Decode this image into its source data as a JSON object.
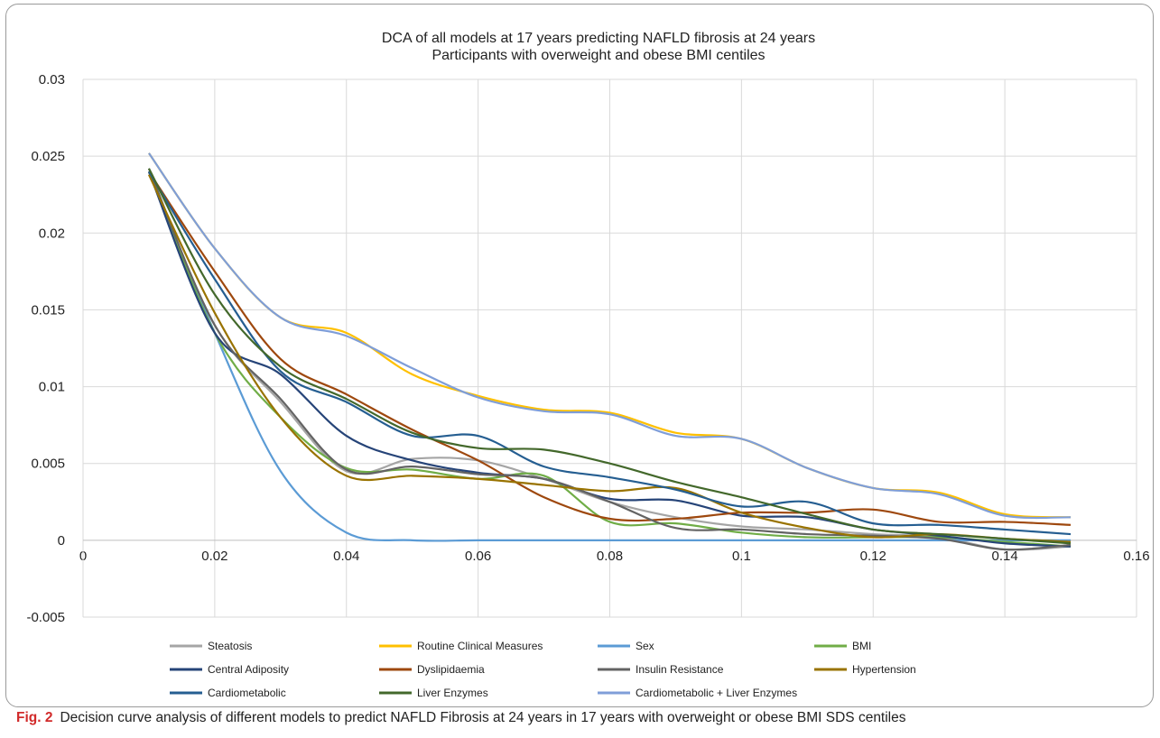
{
  "caption": {
    "label": "Fig. 2",
    "text": "Decision curve analysis of different models to predict NAFLD Fibrosis at 24 years in 17 years with overweight or obese BMI SDS centiles"
  },
  "chart_data": {
    "type": "line",
    "title": "DCA of all models at 17 years predicting NAFLD fibrosis at 24 years",
    "subtitle": "Participants with overweight and obese BMI centiles",
    "xlabel": "",
    "ylabel": "",
    "xlim": [
      0,
      0.16
    ],
    "ylim": [
      -0.005,
      0.03
    ],
    "x_ticks": [
      "0",
      "0.02",
      "0.04",
      "0.06",
      "0.08",
      "0.1",
      "0.12",
      "0.14",
      "0.16"
    ],
    "y_ticks": [
      "0.03",
      "0.025",
      "0.02",
      "0.015",
      "0.01",
      "0.005",
      "0",
      "-0.005"
    ],
    "grid": true,
    "legend_position": "bottom",
    "x": [
      0.01,
      0.02,
      0.03,
      0.04,
      0.05,
      0.06,
      0.07,
      0.08,
      0.09,
      0.1,
      0.11,
      0.12,
      0.13,
      0.14,
      0.15
    ],
    "series": [
      {
        "name": "Steatosis",
        "color": "#a5a5a5",
        "values": [
          0.024,
          0.014,
          0.009,
          0.0045,
          0.0053,
          0.0052,
          0.004,
          0.0025,
          0.0015,
          0.0009,
          0.0007,
          0.0004,
          0.0002,
          -0.0006,
          -0.0004
        ]
      },
      {
        "name": "Routine Clinical Measures",
        "color": "#ffc000",
        "values": [
          0.0252,
          0.019,
          0.0145,
          0.0135,
          0.0108,
          0.0094,
          0.0085,
          0.0083,
          0.007,
          0.0066,
          0.0047,
          0.0034,
          0.0031,
          0.0017,
          0.0015
        ]
      },
      {
        "name": "Sex",
        "color": "#5b9bd5",
        "values": [
          0.024,
          0.0135,
          0.0045,
          0.0005,
          0.0,
          0.0,
          0.0,
          0.0,
          0.0,
          0.0,
          0.0,
          0.0,
          0.0,
          0.0,
          0.0
        ]
      },
      {
        "name": "BMI",
        "color": "#70ad47",
        "values": [
          0.024,
          0.0135,
          0.008,
          0.0047,
          0.0046,
          0.004,
          0.0042,
          0.0012,
          0.0011,
          0.0005,
          0.0002,
          0.0002,
          0.0002,
          -0.0001,
          -0.0004
        ]
      },
      {
        "name": "Central Adiposity",
        "color": "#264478",
        "values": [
          0.024,
          0.0135,
          0.0108,
          0.0068,
          0.0052,
          0.0044,
          0.004,
          0.0027,
          0.0026,
          0.0016,
          0.0015,
          0.0007,
          0.0003,
          -0.0002,
          -0.0004
        ]
      },
      {
        "name": "Dyslipidaemia",
        "color": "#9e480e",
        "values": [
          0.024,
          0.0175,
          0.0118,
          0.0095,
          0.0072,
          0.0052,
          0.0028,
          0.0014,
          0.0014,
          0.0018,
          0.0018,
          0.002,
          0.0012,
          0.0012,
          0.001
        ]
      },
      {
        "name": "Insulin Resistance",
        "color": "#636363",
        "values": [
          0.0242,
          0.014,
          0.0092,
          0.0046,
          0.0048,
          0.0043,
          0.004,
          0.0025,
          0.0008,
          0.0007,
          0.0004,
          0.0003,
          0.0001,
          -0.0006,
          -0.0003
        ]
      },
      {
        "name": "Hypertension",
        "color": "#997300",
        "values": [
          0.0238,
          0.0148,
          0.008,
          0.0042,
          0.0042,
          0.004,
          0.0036,
          0.0032,
          0.0034,
          0.0018,
          0.0008,
          0.0002,
          0.0004,
          0.0001,
          -0.0001
        ]
      },
      {
        "name": "Cardiometabolic",
        "color": "#255e91",
        "values": [
          0.024,
          0.017,
          0.011,
          0.009,
          0.0068,
          0.0068,
          0.0048,
          0.0041,
          0.0033,
          0.0022,
          0.0025,
          0.0011,
          0.001,
          0.0007,
          0.0004
        ]
      },
      {
        "name": "Liver Enzymes",
        "color": "#43682b",
        "values": [
          0.0242,
          0.016,
          0.0113,
          0.0092,
          0.007,
          0.006,
          0.0059,
          0.005,
          0.0038,
          0.0028,
          0.0017,
          0.0007,
          0.0004,
          0.0001,
          -0.0002
        ]
      },
      {
        "name": "Cardiometabolic + Liver Enzymes",
        "color": "#7f9ed8",
        "values": [
          0.0252,
          0.019,
          0.0145,
          0.0133,
          0.0112,
          0.0093,
          0.0084,
          0.0082,
          0.0068,
          0.0066,
          0.0047,
          0.0034,
          0.003,
          0.0016,
          0.0015
        ]
      }
    ]
  }
}
